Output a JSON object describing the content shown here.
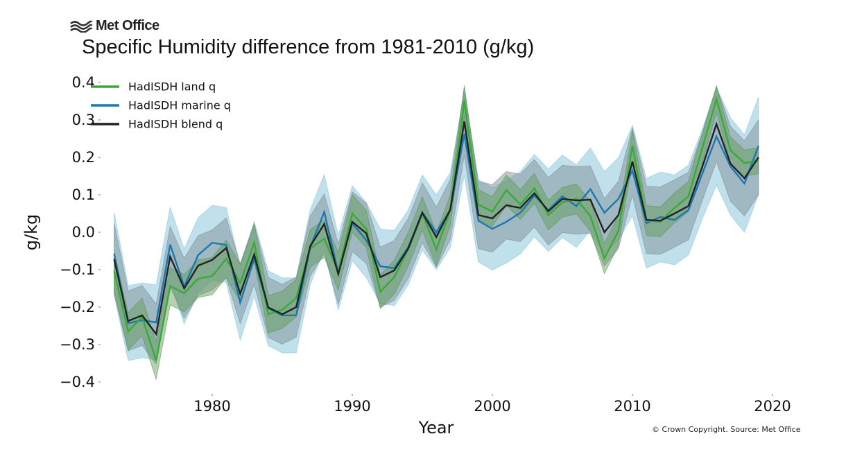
{
  "header": {
    "brand": "Met Office",
    "brand_icon": "met-office-wave-icon",
    "title": "Specific Humidity difference from 1981-2010 (g/kg)"
  },
  "credit": "© Crown Copyright. Source: Met Office",
  "chart_data": {
    "type": "line",
    "title": "Specific Humidity difference from 1981-2010 (g/kg)",
    "xlabel": "Year",
    "ylabel": "g/kg",
    "xlim": [
      1971.5,
      2021
    ],
    "ylim": [
      -0.42,
      0.42
    ],
    "xticks": [
      1980,
      1990,
      2000,
      2010,
      2020
    ],
    "xtick_labels": [
      "1980",
      "1990",
      "2000",
      "2010",
      "2020"
    ],
    "yticks": [
      0.4,
      0.3,
      0.2,
      0.1,
      0.0,
      -0.1,
      -0.2,
      -0.3,
      -0.4
    ],
    "ytick_labels": [
      "0.4",
      "0.3",
      "0.2",
      "0.1",
      "0.0",
      "−0.1",
      "−0.2",
      "−0.3",
      "−0.4"
    ],
    "grid": false,
    "legend_position": "top-left",
    "x": [
      1973,
      1974,
      1975,
      1976,
      1977,
      1978,
      1979,
      1980,
      1981,
      1982,
      1983,
      1984,
      1985,
      1986,
      1987,
      1988,
      1989,
      1990,
      1991,
      1992,
      1993,
      1994,
      1995,
      1996,
      1997,
      1998,
      1999,
      2000,
      2001,
      2002,
      2003,
      2004,
      2005,
      2006,
      2007,
      2008,
      2009,
      2010,
      2011,
      2012,
      2013,
      2014,
      2015,
      2016,
      2017,
      2018,
      2019
    ],
    "series": [
      {
        "name": "HadISDH land q",
        "color": "#3aa935",
        "band_color": "#5a9a52",
        "values": [
          -0.104,
          -0.265,
          -0.226,
          -0.343,
          -0.144,
          -0.163,
          -0.124,
          -0.117,
          -0.071,
          -0.136,
          -0.028,
          -0.219,
          -0.207,
          -0.176,
          -0.043,
          -0.017,
          -0.105,
          0.05,
          0.009,
          -0.159,
          -0.12,
          -0.045,
          0.05,
          -0.046,
          0.059,
          0.352,
          0.074,
          0.055,
          0.113,
          0.074,
          0.117,
          0.046,
          0.08,
          0.089,
          0.043,
          -0.07,
          0.004,
          0.231,
          0.031,
          0.028,
          0.065,
          0.096,
          0.226,
          0.356,
          0.219,
          0.185,
          0.191
        ],
        "uncertainty": [
          0.05,
          0.05,
          0.05,
          0.05,
          0.05,
          0.05,
          0.05,
          0.05,
          0.05,
          0.05,
          0.05,
          0.05,
          0.05,
          0.05,
          0.05,
          0.05,
          0.05,
          0.05,
          0.05,
          0.045,
          0.045,
          0.045,
          0.045,
          0.045,
          0.04,
          0.04,
          0.04,
          0.04,
          0.04,
          0.04,
          0.04,
          0.04,
          0.04,
          0.04,
          0.04,
          0.04,
          0.04,
          0.04,
          0.04,
          0.04,
          0.04,
          0.04,
          0.04,
          0.035,
          0.035,
          0.035,
          0.035
        ]
      },
      {
        "name": "HadISDH marine q",
        "color": "#1a77b0",
        "band_color": "#8cc6dc",
        "values": [
          -0.057,
          -0.243,
          -0.235,
          -0.241,
          -0.033,
          -0.145,
          -0.061,
          -0.028,
          -0.034,
          -0.188,
          -0.071,
          -0.203,
          -0.222,
          -0.222,
          -0.04,
          0.054,
          -0.108,
          0.024,
          -0.021,
          -0.091,
          -0.096,
          -0.04,
          0.053,
          0.0,
          0.059,
          0.263,
          0.031,
          0.009,
          0.028,
          0.052,
          0.098,
          0.059,
          0.096,
          0.07,
          0.115,
          0.052,
          0.089,
          0.165,
          0.024,
          0.041,
          0.033,
          0.059,
          0.157,
          0.256,
          0.176,
          0.13,
          0.231
        ],
        "uncertainty": [
          0.11,
          0.1,
          0.1,
          0.1,
          0.1,
          0.1,
          0.1,
          0.1,
          0.1,
          0.1,
          0.1,
          0.1,
          0.1,
          0.1,
          0.1,
          0.1,
          0.1,
          0.1,
          0.1,
          0.1,
          0.1,
          0.1,
          0.1,
          0.1,
          0.1,
          0.11,
          0.11,
          0.11,
          0.11,
          0.11,
          0.11,
          0.11,
          0.11,
          0.11,
          0.11,
          0.11,
          0.11,
          0.12,
          0.12,
          0.12,
          0.12,
          0.12,
          0.12,
          0.13,
          0.13,
          0.13,
          0.13
        ]
      },
      {
        "name": "HadISDH blend q",
        "color": "#222222",
        "band_color": "#7f9098",
        "values": [
          -0.072,
          -0.237,
          -0.222,
          -0.272,
          -0.065,
          -0.15,
          -0.089,
          -0.074,
          -0.042,
          -0.164,
          -0.059,
          -0.201,
          -0.219,
          -0.2,
          -0.037,
          0.022,
          -0.112,
          0.028,
          -0.003,
          -0.12,
          -0.102,
          -0.043,
          0.052,
          -0.013,
          0.061,
          0.296,
          0.046,
          0.037,
          0.072,
          0.065,
          0.104,
          0.056,
          0.089,
          0.085,
          0.087,
          0.0,
          0.046,
          0.189,
          0.033,
          0.031,
          0.05,
          0.07,
          0.176,
          0.289,
          0.183,
          0.144,
          0.2
        ],
        "uncertainty": [
          0.095,
          0.08,
          0.08,
          0.08,
          0.08,
          0.08,
          0.08,
          0.08,
          0.08,
          0.08,
          0.08,
          0.08,
          0.08,
          0.08,
          0.08,
          0.08,
          0.08,
          0.08,
          0.08,
          0.08,
          0.08,
          0.08,
          0.08,
          0.08,
          0.08,
          0.09,
          0.09,
          0.09,
          0.09,
          0.09,
          0.09,
          0.09,
          0.09,
          0.09,
          0.09,
          0.09,
          0.09,
          0.09,
          0.09,
          0.09,
          0.09,
          0.09,
          0.09,
          0.1,
          0.1,
          0.1,
          0.1
        ]
      }
    ]
  }
}
